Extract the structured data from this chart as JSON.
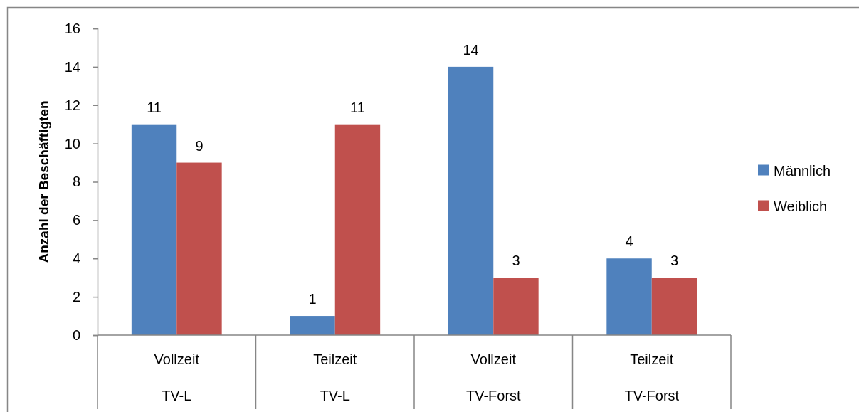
{
  "chart_data": {
    "type": "bar",
    "categories": [
      "Vollzeit\nTV-L",
      "Teilzeit\nTV-L",
      "Vollzeit\nTV-Forst",
      "Teilzeit\nTV-Forst"
    ],
    "ylabel": "Anzahl der Beschäftigten",
    "series": [
      {
        "name": "Männlich",
        "color": "#4f81bd",
        "values": [
          11,
          1,
          14,
          4
        ]
      },
      {
        "name": "Weiblich",
        "color": "#c0504d",
        "values": [
          9,
          11,
          3,
          3
        ]
      }
    ],
    "ylim": [
      0,
      16
    ],
    "yticks": [
      0,
      2,
      4,
      6,
      8,
      10,
      12,
      14,
      16
    ],
    "data_labels": true,
    "legend": "right"
  }
}
